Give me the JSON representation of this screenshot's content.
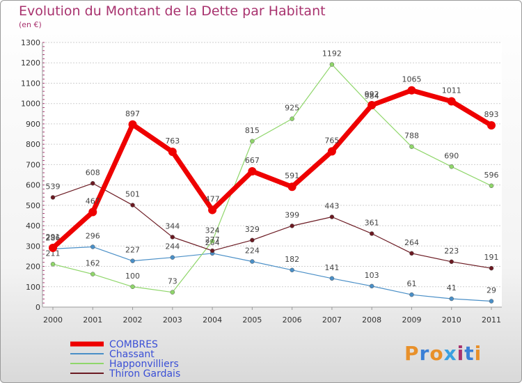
{
  "title": "Evolution du Montant de la Dette par Habitant",
  "subtitle": "(en €)",
  "logo": {
    "text": "Proxiti",
    "colors": [
      "#e8902a",
      "#3a7fd6",
      "#e8902a",
      "#39a0e0",
      "#a8326e",
      "#3a7fd6",
      "#e8902a"
    ]
  },
  "chart_data": {
    "type": "line",
    "x": [
      "2000",
      "2001",
      "2002",
      "2003",
      "2004",
      "2005",
      "2006",
      "2007",
      "2008",
      "2009",
      "2010",
      "2011"
    ],
    "ylim": [
      0,
      1300
    ],
    "yticks": [
      0,
      100,
      200,
      300,
      400,
      500,
      600,
      700,
      800,
      900,
      1000,
      1100,
      1200,
      1300
    ],
    "grid": true,
    "legend": "bottom-left",
    "series": [
      {
        "name": "Chassant",
        "color": "#4a8fc7",
        "values": [
          286,
          296,
          227,
          244,
          264,
          224,
          182,
          141,
          103,
          61,
          41,
          29
        ]
      },
      {
        "name": "Happonvilliers",
        "color": "#8fd66a",
        "values": [
          211,
          162,
          100,
          73,
          324,
          815,
          925,
          1192,
          984,
          788,
          690,
          596
        ]
      },
      {
        "name": "Thiron Gardais",
        "color": "#6b1a22",
        "values": [
          539,
          608,
          501,
          344,
          277,
          329,
          399,
          443,
          361,
          264,
          223,
          191
        ]
      },
      {
        "name": "COMBRES",
        "color": "#ee0000",
        "values": [
          291,
          467,
          897,
          763,
          477,
          667,
          591,
          765,
          992,
          1065,
          1011,
          893
        ]
      }
    ],
    "legend_order": [
      "COMBRES",
      "Chassant",
      "Happonvilliers",
      "Thiron Gardais"
    ]
  }
}
